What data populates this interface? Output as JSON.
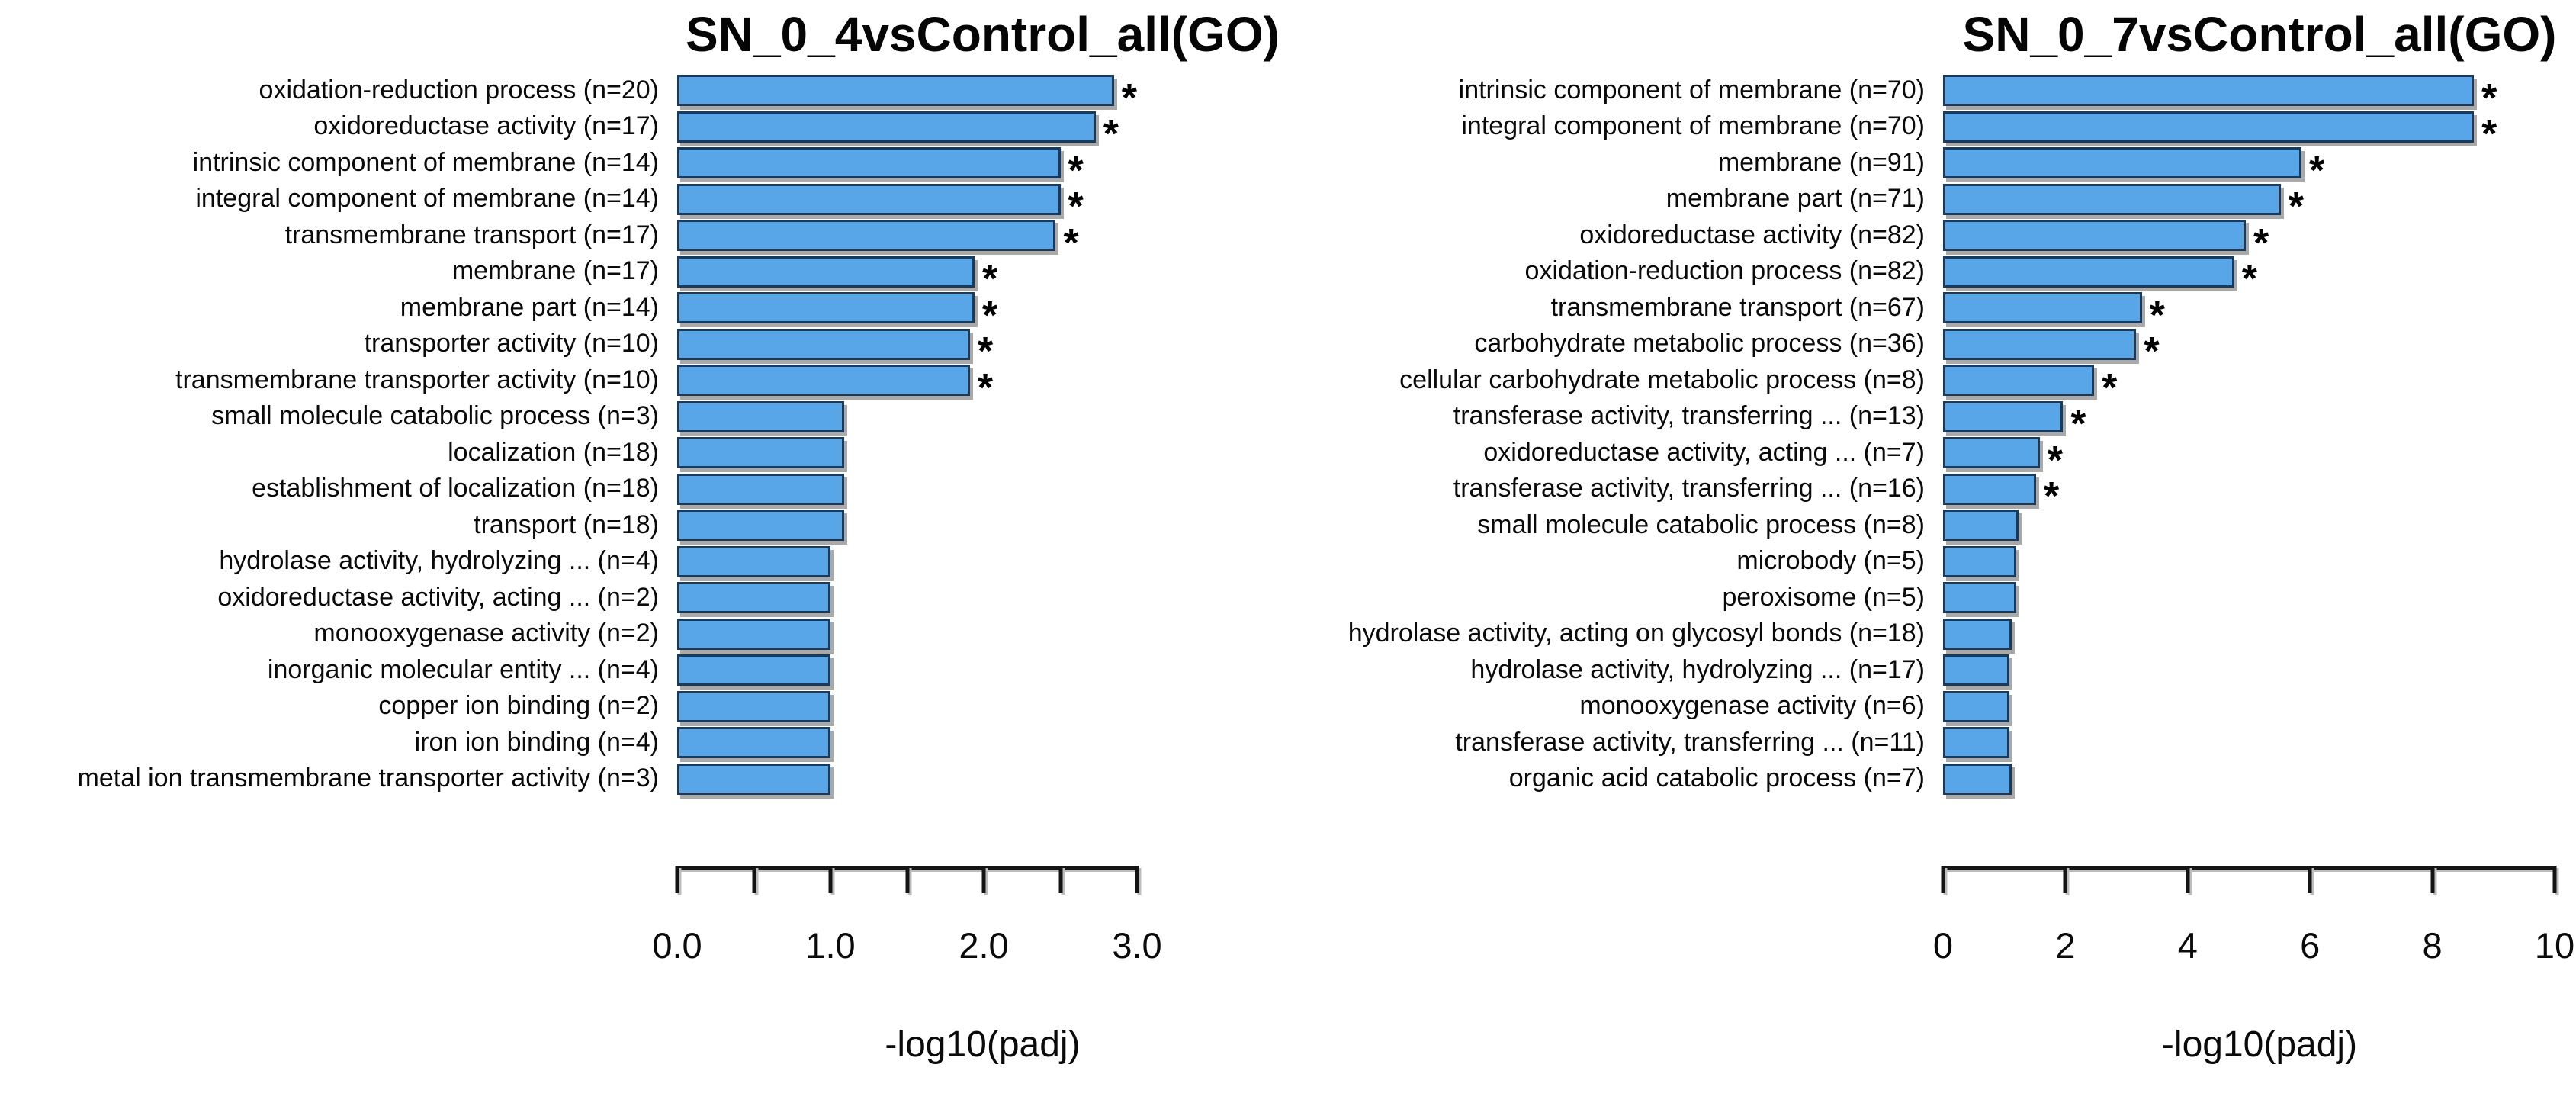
{
  "figure": {
    "background": "#ffffff",
    "text_color": "#000000",
    "bar_fill": "#58A5E8",
    "bar_border": "#1A3A5C",
    "bar_shadow": "#A9A9A9",
    "significance_marker": "*"
  },
  "chart_data": [
    {
      "type": "bar",
      "orientation": "horizontal",
      "title": "SN_0_4vsControl_all(GO)",
      "xlabel": "-log10(padj)",
      "xlim": [
        0,
        3
      ],
      "grid": false,
      "xticks": [
        0,
        0.5,
        1,
        1.5,
        2,
        2.5,
        3
      ],
      "xtick_labels": [
        "0.0",
        "",
        "1.0",
        "",
        "2.0",
        "",
        "3.0"
      ],
      "categories": [
        "oxidation-reduction process (n=20)",
        "oxidoreductase activity (n=17)",
        "intrinsic component of membrane (n=14)",
        "integral component of membrane (n=14)",
        "transmembrane transport (n=17)",
        "membrane (n=17)",
        "membrane part (n=14)",
        "transporter activity (n=10)",
        "transmembrane transporter activity (n=10)",
        "small molecule catabolic process (n=3)",
        "localization (n=18)",
        "establishment of localization (n=18)",
        "transport (n=18)",
        "hydrolase activity, hydrolyzing ... (n=4)",
        "oxidoreductase activity, acting ... (n=2)",
        "monooxygenase activity (n=2)",
        "inorganic molecular entity ... (n=4)",
        "copper ion binding (n=2)",
        "iron ion binding (n=4)",
        "metal ion transmembrane transporter activity (n=3)"
      ],
      "values": [
        2.87,
        2.73,
        2.5,
        2.5,
        2.47,
        1.94,
        1.94,
        1.91,
        1.91,
        1.09,
        1.09,
        1.09,
        1.09,
        1.0,
        1.0,
        1.0,
        1.0,
        1.0,
        1.0,
        1.0
      ],
      "significant": [
        true,
        true,
        true,
        true,
        true,
        true,
        true,
        true,
        true,
        false,
        false,
        false,
        false,
        false,
        false,
        false,
        false,
        false,
        false,
        false
      ]
    },
    {
      "type": "bar",
      "orientation": "horizontal",
      "title": "SN_0_7vsControl_all(GO)",
      "xlabel": "-log10(padj)",
      "xlim": [
        0,
        10
      ],
      "grid": false,
      "xticks": [
        0,
        2,
        4,
        6,
        8,
        10
      ],
      "xtick_labels": [
        "0",
        "2",
        "4",
        "6",
        "8",
        "10"
      ],
      "categories": [
        "intrinsic component of membrane (n=70)",
        "integral component of membrane (n=70)",
        "membrane (n=91)",
        "membrane part (n=71)",
        "oxidoreductase activity (n=82)",
        "oxidation-reduction process (n=82)",
        "transmembrane transport (n=67)",
        "carbohydrate metabolic process (n=36)",
        "cellular carbohydrate metabolic process (n=8)",
        "transferase activity, transferring ... (n=13)",
        "oxidoreductase activity, acting ... (n=7)",
        "transferase activity, transferring ... (n=16)",
        "small molecule catabolic process (n=8)",
        "microbody (n=5)",
        "peroxisome (n=5)",
        "hydrolase activity, acting on glycosyl bonds (n=18)",
        "hydrolase activity, hydrolyzing ... (n=17)",
        "monooxygenase activity (n=6)",
        "transferase activity, transferring ... (n=11)",
        "organic acid catabolic process (n=7)"
      ],
      "values": [
        8.68,
        8.68,
        5.86,
        5.52,
        4.95,
        4.76,
        3.25,
        3.16,
        2.47,
        1.96,
        1.58,
        1.52,
        1.24,
        1.2,
        1.2,
        1.12,
        1.09,
        1.09,
        1.09,
        1.12
      ],
      "significant": [
        true,
        true,
        true,
        true,
        true,
        true,
        true,
        true,
        true,
        true,
        true,
        true,
        false,
        false,
        false,
        false,
        false,
        false,
        false,
        false
      ]
    }
  ]
}
